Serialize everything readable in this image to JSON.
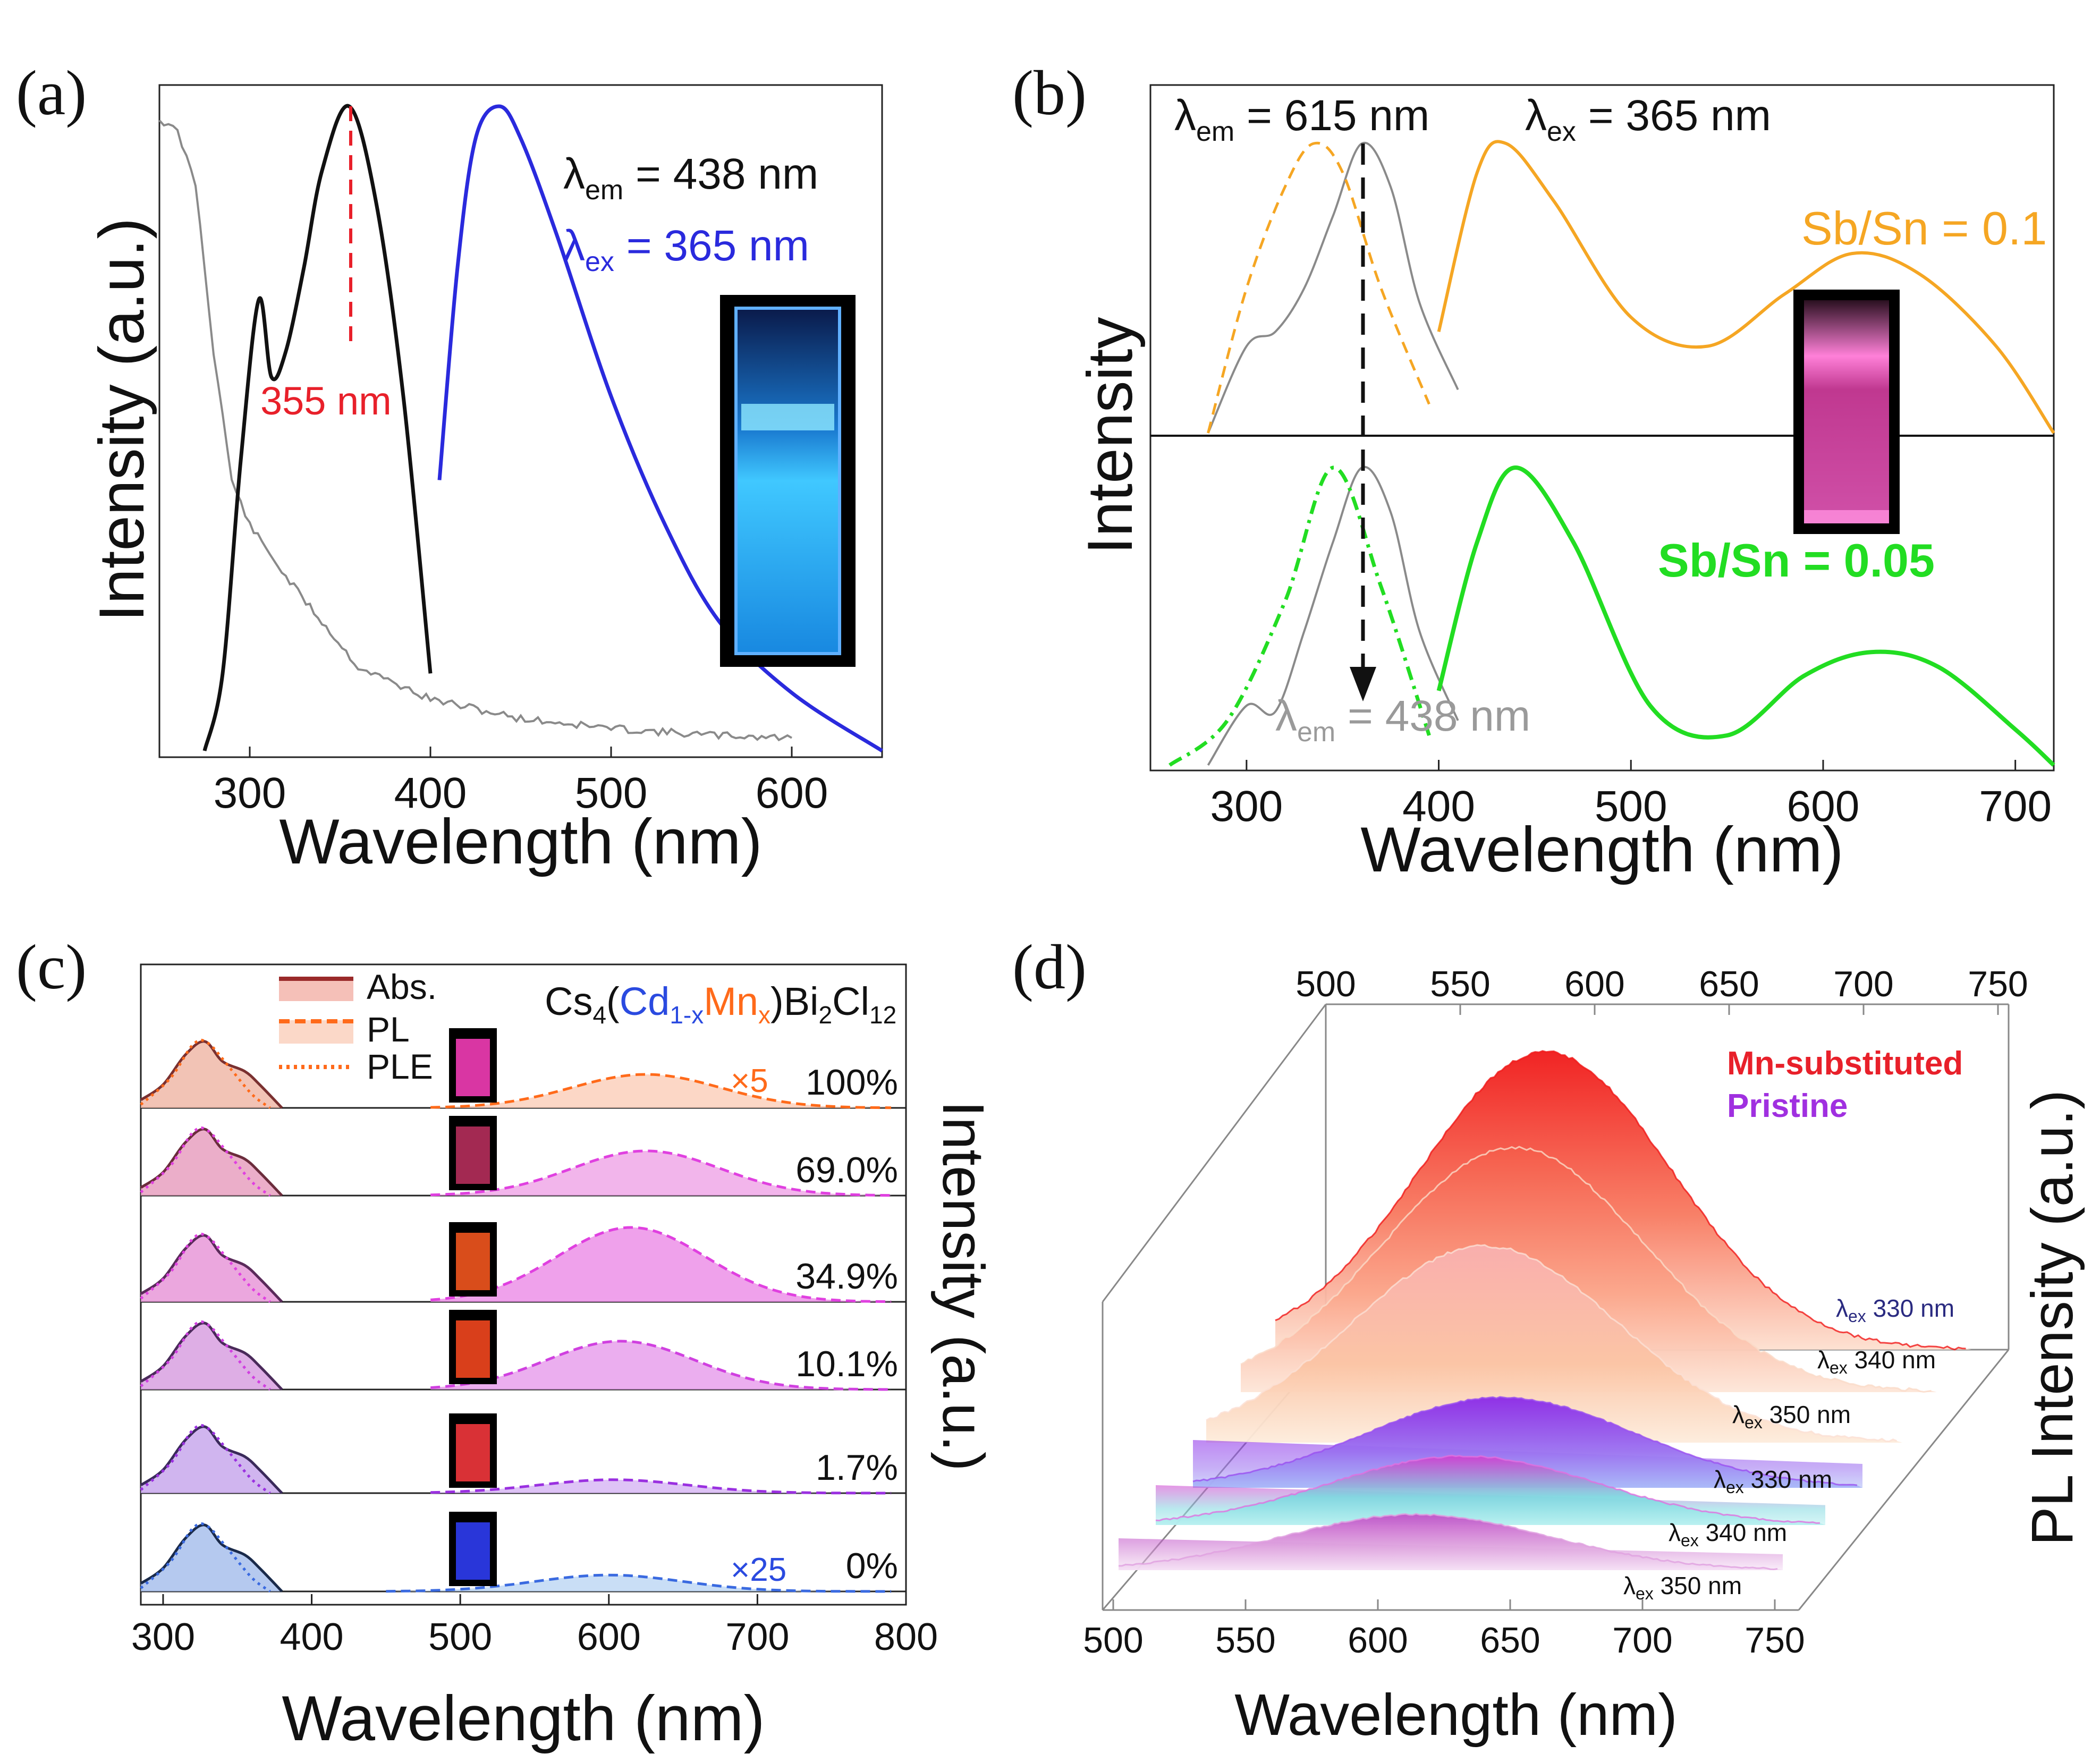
{
  "panels": {
    "a": {
      "letter": "(a)",
      "xlabel": "Wavelength (nm)",
      "ylabel": "Intensity (a.u.)",
      "xticks": [
        "300",
        "400",
        "500",
        "600"
      ],
      "lem_sym": "λ",
      "lem_sub": "em",
      "lem_val": " = 438 nm",
      "lex_sym": "λ",
      "lex_sub": "ex",
      "lex_val": " = 365 nm",
      "peak_label": "355 nm"
    },
    "b": {
      "letter": "(b)",
      "xlabel": "Wavelength (nm)",
      "ylabel": "Intensity",
      "xticks": [
        "300",
        "400",
        "500",
        "600",
        "700"
      ],
      "lem_sym": "λ",
      "lem_sub": "em",
      "lem_val": " = 615 nm",
      "lex_sym": "λ",
      "lex_sub": "ex",
      "lex_val": " = 365 nm",
      "lem2_sym": "λ",
      "lem2_sub": "em",
      "lem2_val": " = 438 nm",
      "top_label": "Sb/Sn = 0.1",
      "bottom_label": "Sb/Sn = 0.05"
    },
    "c": {
      "letter": "(c)",
      "xlabel": "Wavelength (nm)",
      "ylabel": "Intensity (a.u.)",
      "xticks": [
        "300",
        "400",
        "500",
        "600",
        "700",
        "800"
      ],
      "legend": [
        "Abs.",
        "PL",
        "PLE"
      ],
      "formula": {
        "a": "Cs",
        "a_sub": "4",
        "p1": "(",
        "cd": "Cd",
        "cd_sub": "1-x",
        "mn": "Mn",
        "mn_sub": "x",
        "p2": ")",
        "rest": "Bi",
        "rest_sub": "2",
        "cl": "Cl",
        "cl_sub": "12"
      },
      "rows": [
        "100%",
        "69.0%",
        "34.9%",
        "10.1%",
        "1.7%",
        "0%"
      ],
      "mult_top": "×5",
      "mult_bottom": "×25"
    },
    "d": {
      "letter": "(d)",
      "xlabel": "Wavelength (nm)",
      "ylabel": "PL Intensity (a.u.)",
      "xticks_top": [
        "500",
        "550",
        "600",
        "650",
        "700",
        "750"
      ],
      "xticks_bottom": [
        "500",
        "550",
        "600",
        "650",
        "700",
        "750"
      ],
      "legend_mn": "Mn-substituted",
      "legend_pristine": "Pristine",
      "ex_labels": [
        "330 nm",
        "340 nm",
        "350 nm",
        "330 nm",
        "340 nm",
        "350 nm"
      ],
      "ex_sym": "λ",
      "ex_sub": "ex"
    }
  },
  "colors": {
    "black": "#111111",
    "grey": "#8a8a8a",
    "blue": "#2a2add",
    "red": "#e8202a",
    "orange": "#f5a623",
    "green": "#22dd22",
    "abs_dark": "#6b2c2c",
    "pl_orange": "#ff6a1a",
    "pink": "#e040e0",
    "violet": "#9a30e0"
  },
  "chart_data": [
    {
      "panel": "a",
      "type": "line",
      "xlabel": "Wavelength (nm)",
      "ylabel": "Intensity (a.u.)",
      "xlim": [
        250,
        650
      ],
      "ylim": [
        0,
        1
      ],
      "series": [
        {
          "name": "Absorption (grey)",
          "x": [
            250,
            260,
            270,
            280,
            290,
            300,
            320,
            340,
            360,
            400,
            450,
            500,
            550,
            600
          ],
          "values": [
            0.98,
            0.96,
            0.88,
            0.62,
            0.42,
            0.35,
            0.27,
            0.2,
            0.13,
            0.08,
            0.05,
            0.035,
            0.025,
            0.02
          ]
        },
        {
          "name": "PLE (black)",
          "x": [
            275,
            285,
            295,
            305,
            312,
            320,
            330,
            340,
            355,
            370,
            385,
            400
          ],
          "values": [
            0.0,
            0.12,
            0.45,
            0.7,
            0.58,
            0.62,
            0.75,
            0.9,
            1.0,
            0.85,
            0.55,
            0.12
          ]
        },
        {
          "name": "PL (blue)",
          "x": [
            405,
            415,
            425,
            438,
            450,
            470,
            500,
            530,
            560,
            600,
            650
          ],
          "values": [
            0.42,
            0.75,
            0.95,
            1.0,
            0.95,
            0.8,
            0.55,
            0.35,
            0.2,
            0.09,
            0.0
          ]
        }
      ],
      "annotations": [
        "λem = 438 nm",
        "λex = 365 nm",
        "355 nm"
      ]
    },
    {
      "panel": "b",
      "type": "line",
      "xlabel": "Wavelength (nm)",
      "ylabel": "Intensity",
      "xlim": [
        250,
        720
      ],
      "series": [
        {
          "name": "Sb/Sn = 0.1 PLE (orange dashed)",
          "x": [
            280,
            300,
            320,
            335,
            350,
            370,
            395
          ],
          "values": [
            0.0,
            0.5,
            0.85,
            1.0,
            0.9,
            0.5,
            0.1
          ]
        },
        {
          "name": "Sb/Sn = 0.1 PL (orange)",
          "x": [
            400,
            420,
            435,
            460,
            500,
            540,
            580,
            615,
            650,
            690,
            720
          ],
          "values": [
            0.35,
            0.9,
            1.0,
            0.8,
            0.4,
            0.3,
            0.48,
            0.62,
            0.55,
            0.3,
            0.0
          ]
        },
        {
          "name": "Sb/Sn = 0.05 PLE (green dash-dot)",
          "x": [
            260,
            290,
            320,
            345,
            370,
            395
          ],
          "values": [
            0.0,
            0.15,
            0.55,
            1.0,
            0.6,
            0.1
          ]
        },
        {
          "name": "Sb/Sn = 0.05 PL (green)",
          "x": [
            400,
            420,
            440,
            470,
            510,
            550,
            590,
            625,
            660,
            700,
            720
          ],
          "values": [
            0.25,
            0.75,
            1.0,
            0.75,
            0.2,
            0.1,
            0.3,
            0.38,
            0.33,
            0.12,
            0.0
          ]
        }
      ],
      "annotations": [
        "λem = 615 nm",
        "λex = 365 nm",
        "λem = 438 nm",
        "Sb/Sn = 0.1",
        "Sb/Sn = 0.05"
      ]
    },
    {
      "panel": "c",
      "type": "area",
      "xlabel": "Wavelength (nm)",
      "ylabel": "Intensity (a.u.)",
      "xlim": [
        285,
        800
      ],
      "categories": [
        "100%",
        "69.0%",
        "34.9%",
        "10.1%",
        "1.7%",
        "0%"
      ],
      "series": [
        {
          "name": "Abs. peak ~328 nm",
          "values": [
            1,
            1,
            1,
            1,
            1,
            1
          ]
        },
        {
          "name": "PL peak (nm)",
          "values": [
            625,
            625,
            615,
            608,
            603,
            600
          ]
        },
        {
          "name": "PL relative height",
          "values": [
            0.45,
            0.6,
            1.0,
            0.65,
            0.18,
            0.22
          ]
        }
      ],
      "annotations": [
        "×5",
        "×25"
      ]
    },
    {
      "panel": "d",
      "type": "area",
      "xlabel": "Wavelength (nm)",
      "ylabel": "PL Intensity (a.u.)",
      "xlim": [
        500,
        750
      ],
      "series": [
        {
          "name": "Mn-substituted λex 330 nm",
          "peak": 597,
          "height": 1.0
        },
        {
          "name": "Mn-substituted λex 340 nm",
          "peak": 598,
          "height": 0.83
        },
        {
          "name": "Mn-substituted λex 350 nm",
          "peak": 600,
          "height": 0.68
        },
        {
          "name": "Pristine λex 330 nm",
          "peak": 615,
          "height": 0.3
        },
        {
          "name": "Pristine λex 340 nm",
          "peak": 615,
          "height": 0.23
        },
        {
          "name": "Pristine λex 350 nm",
          "peak": 612,
          "height": 0.17
        }
      ]
    }
  ]
}
